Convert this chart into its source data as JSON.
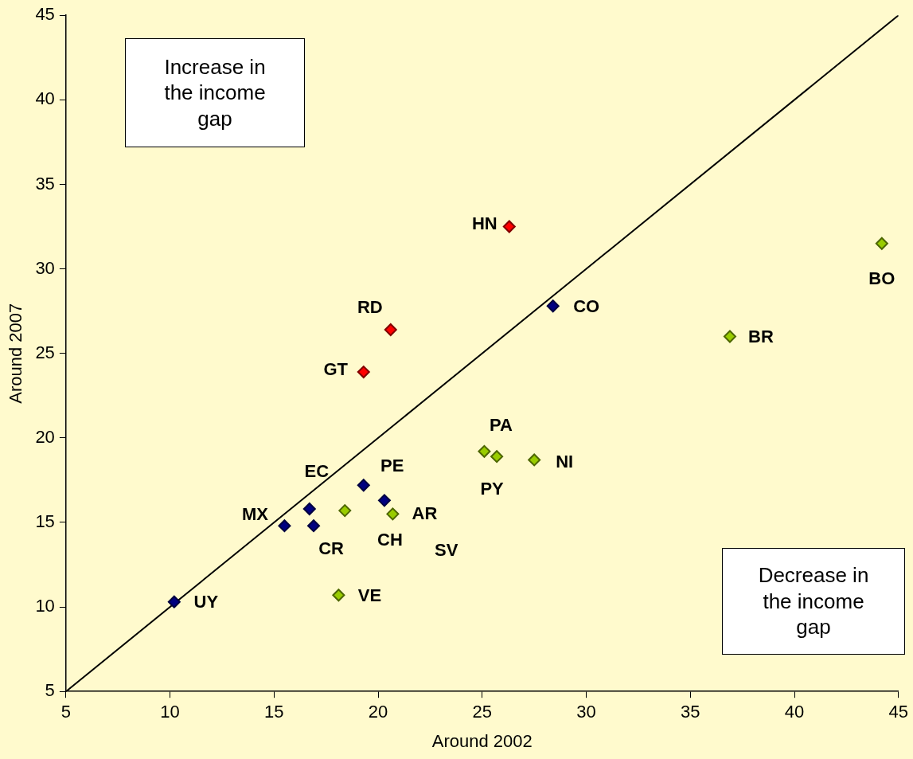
{
  "chart_data": {
    "type": "scatter",
    "xlabel": "Around 2002",
    "ylabel": "Around 2007",
    "xlim": [
      5,
      45
    ],
    "ylim": [
      5,
      45
    ],
    "xticks": [
      5,
      10,
      15,
      20,
      25,
      30,
      35,
      40,
      45
    ],
    "yticks": [
      5,
      10,
      15,
      20,
      25,
      30,
      35,
      40,
      45
    ],
    "grid": false,
    "legend": false,
    "marker": "diamond",
    "series": [
      {
        "color": "#000080",
        "x": [
          10.2,
          15.5,
          16.7,
          16.9,
          19.3,
          20.3,
          28.4
        ],
        "values": [
          10.3,
          14.8,
          15.8,
          14.8,
          17.2,
          16.3,
          27.8
        ]
      },
      {
        "color": "#ff0000",
        "x": [
          26.3,
          20.6,
          19.3
        ],
        "values": [
          32.5,
          26.4,
          23.9
        ]
      },
      {
        "color": "#99cc00",
        "x": [
          18.4,
          20.7,
          18.1,
          25.1,
          25.7,
          27.5,
          36.9,
          44.2
        ],
        "values": [
          15.7,
          15.5,
          10.7,
          19.2,
          18.9,
          18.7,
          26.0,
          31.5
        ]
      },
      {
        "type": "line",
        "color": "#000000",
        "marker": "none",
        "x": [
          5,
          45
        ],
        "values": [
          5,
          45
        ]
      }
    ],
    "annotations": [
      "Increase in the income gap",
      "Decrease in the income gap",
      {
        "text": "HN",
        "x": 26.3,
        "y": 32.5
      },
      {
        "text": "RD",
        "x": 20.6,
        "y": 26.4
      },
      {
        "text": "GT",
        "x": 19.3,
        "y": 23.9
      },
      {
        "text": "CO",
        "x": 28.4,
        "y": 27.8
      },
      {
        "text": "BO",
        "x": 44.2,
        "y": 31.5
      },
      {
        "text": "BR",
        "x": 36.9,
        "y": 26.0
      },
      {
        "text": "PA",
        "x": 25.1,
        "y": 19.2
      },
      {
        "text": "NI",
        "x": 27.5,
        "y": 18.7
      },
      {
        "text": "PY",
        "x": 25.7,
        "y": 18.9
      },
      {
        "text": "PE",
        "x": 19.3,
        "y": 17.2
      },
      {
        "text": "EC",
        "x": 16.7,
        "y": 15.8
      },
      {
        "text": "AR",
        "x": 20.7,
        "y": 15.5
      },
      {
        "text": "MX",
        "x": 15.5,
        "y": 14.8
      },
      {
        "text": "CH",
        "x": 20.3,
        "y": 16.3
      },
      {
        "text": "CR",
        "x": 16.9,
        "y": 14.8
      },
      "SV",
      {
        "text": "VE",
        "x": 18.1,
        "y": 10.7
      },
      {
        "text": "UY",
        "x": 10.2,
        "y": 10.3
      }
    ]
  }
}
